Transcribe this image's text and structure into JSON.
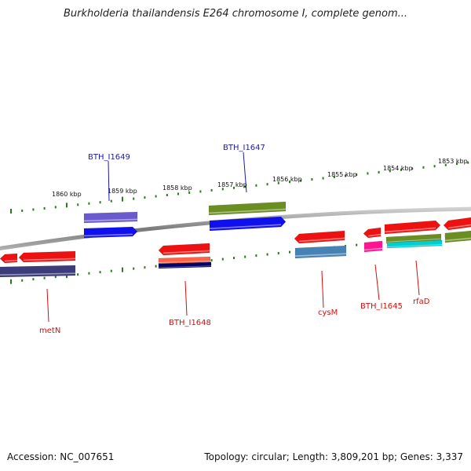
{
  "title": "Burkholderia thailandensis E264 chromosome I, complete genom...",
  "footer": {
    "accession": "Accession: NC_007651",
    "topology": "Topology: circular; Length: 3,809,201 bp; Genes: 3,337"
  },
  "ticks": [
    {
      "label": "1860 kbp"
    },
    {
      "label": "1859 kbp"
    },
    {
      "label": "1858 kbp"
    },
    {
      "label": "1857 kbp"
    },
    {
      "label": "1856 kbp"
    },
    {
      "label": "1855 kbp"
    },
    {
      "label": "1854 kbp"
    },
    {
      "label": "1853 kbp"
    }
  ],
  "gene_labels": [
    {
      "name": "BTH_I1649",
      "color": "#1a1aaa"
    },
    {
      "name": "BTH_I1647",
      "color": "#1a1aaa"
    },
    {
      "name": "metN",
      "color": "#cc1111"
    },
    {
      "name": "BTH_I1648",
      "color": "#cc1111"
    },
    {
      "name": "cysM",
      "color": "#cc1111"
    },
    {
      "name": "BTH_I1645",
      "color": "#cc1111"
    },
    {
      "name": "rfaD",
      "color": "#cc1111"
    }
  ],
  "colors": {
    "backbone": "#8a8a8a",
    "tick": "#2b7a1e",
    "red": "#ee1111",
    "blue": "#1010ee",
    "purple": "#6a5acd",
    "olive": "#6b8e23",
    "navy": "#3c3c7a",
    "darknavy": "#000066",
    "salmon": "#ff6347",
    "steel": "#4682b4",
    "pink": "#ff1493",
    "cyan": "#00ced1"
  }
}
